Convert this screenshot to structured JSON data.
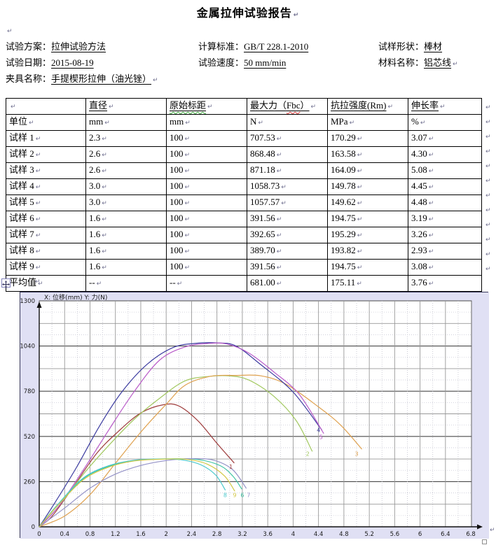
{
  "document_title": "金属拉伸试验报告",
  "marks": {
    "pilcrow": "↵"
  },
  "info": {
    "items": [
      {
        "label": "试验方案：",
        "value": "拉伸试验方法"
      },
      {
        "label": "计算标准：",
        "value": "GB/T 228.1-2010"
      },
      {
        "label": "试样形状：",
        "value": "棒材"
      },
      {
        "label": "试验日期：",
        "value": "2015-08-19"
      },
      {
        "label": "试验速度：",
        "value": "50 mm/min"
      },
      {
        "label": "材料名称：",
        "value": "铝芯线",
        "pilcrow": true
      },
      {
        "label": "夹具名称：",
        "value": "手提楔形拉伸（油光锉）",
        "pilcrow": true,
        "span": 3
      }
    ]
  },
  "table": {
    "unit_row_label": "单位",
    "columns": [
      {
        "title": "",
        "unit": ""
      },
      {
        "title": "直径",
        "unit": "mm"
      },
      {
        "title": "原始标距",
        "unit": "mm",
        "spellcheck": "green"
      },
      {
        "title_parts": [
          "最大力（",
          "Fbc",
          "）"
        ],
        "unit": "N",
        "spellcheck": "red"
      },
      {
        "title": "抗拉强度(Rm)",
        "unit": "MPa"
      },
      {
        "title": "伸长率",
        "unit": "%"
      }
    ],
    "rows": [
      {
        "name": "试样 1",
        "values": [
          "2.3",
          "100",
          "707.53",
          "170.29",
          "3.07"
        ]
      },
      {
        "name": "试样 2",
        "values": [
          "2.6",
          "100",
          "868.48",
          "163.58",
          "4.30"
        ]
      },
      {
        "name": "试样 3",
        "values": [
          "2.6",
          "100",
          "871.18",
          "164.09",
          "5.08"
        ]
      },
      {
        "name": "试样 4",
        "values": [
          "3.0",
          "100",
          "1058.73",
          "149.78",
          "4.45"
        ]
      },
      {
        "name": "试样 5",
        "values": [
          "3.0",
          "100",
          "1057.57",
          "149.62",
          "4.48"
        ]
      },
      {
        "name": "试样 6",
        "values": [
          "1.6",
          "100",
          "391.56",
          "194.75",
          "3.19"
        ]
      },
      {
        "name": "试样 7",
        "values": [
          "1.6",
          "100",
          "392.65",
          "195.29",
          "3.26"
        ]
      },
      {
        "name": "试样 8",
        "values": [
          "1.6",
          "100",
          "389.70",
          "193.82",
          "2.93"
        ]
      },
      {
        "name": "试样 9",
        "values": [
          "1.6",
          "100",
          "391.56",
          "194.75",
          "3.08"
        ]
      },
      {
        "name": "平均值",
        "values": [
          "--",
          "--",
          "681.00",
          "175.11",
          "3.76"
        ]
      }
    ]
  },
  "chart_data": {
    "type": "line",
    "title": "X: 位移(mm)  Y: 力(N)",
    "xlabel": "位移 (mm)",
    "ylabel": "力 (N)",
    "xlim": [
      0,
      6.8
    ],
    "ylim": [
      0,
      1300
    ],
    "x_ticks": [
      0,
      0.4,
      0.8,
      1.2,
      1.6,
      2,
      2.4,
      2.8,
      3.2,
      3.6,
      4,
      4.4,
      4.8,
      5.2,
      5.6,
      6,
      6.4,
      6.8
    ],
    "y_ticks": [
      0,
      260,
      520,
      780,
      1040,
      1300
    ],
    "grid": {
      "v_solid_step": 0.4,
      "v_dotted_step": 0.2,
      "h_dark_step": 260,
      "h_solid_step": 130,
      "h_dotted_step": 65
    },
    "legend_position": "curve-end-labels",
    "colors": {
      "plot_background": "#ffffff",
      "margin_background": "#e0e0f4"
    },
    "series": [
      {
        "name": "1",
        "color": "#9e3c3c",
        "label_xy": [
          3.02,
          335
        ],
        "points": [
          [
            0,
            0
          ],
          [
            0.2,
            60
          ],
          [
            0.5,
            210
          ],
          [
            0.9,
            420
          ],
          [
            1.25,
            550
          ],
          [
            1.6,
            655
          ],
          [
            1.95,
            702
          ],
          [
            2.2,
            695
          ],
          [
            2.5,
            610
          ],
          [
            2.8,
            480
          ],
          [
            3.07,
            368
          ]
        ]
      },
      {
        "name": "2",
        "color": "#a2c860",
        "label_xy": [
          4.23,
          408
        ],
        "points": [
          [
            0,
            0
          ],
          [
            0.3,
            115
          ],
          [
            0.7,
            305
          ],
          [
            1.1,
            470
          ],
          [
            1.5,
            620
          ],
          [
            1.9,
            740
          ],
          [
            2.3,
            840
          ],
          [
            2.7,
            866
          ],
          [
            3.0,
            868
          ],
          [
            3.3,
            845
          ],
          [
            3.7,
            750
          ],
          [
            4.05,
            610
          ],
          [
            4.3,
            435
          ]
        ]
      },
      {
        "name": "3",
        "color": "#dfa14f",
        "label_xy": [
          5.0,
          408
        ],
        "points": [
          [
            0,
            0
          ],
          [
            0.4,
            62
          ],
          [
            0.8,
            185
          ],
          [
            1.2,
            365
          ],
          [
            1.6,
            545
          ],
          [
            2.0,
            705
          ],
          [
            2.3,
            815
          ],
          [
            2.7,
            866
          ],
          [
            3.1,
            871
          ],
          [
            3.5,
            868
          ],
          [
            3.9,
            818
          ],
          [
            4.4,
            690
          ],
          [
            4.75,
            585
          ],
          [
            5.08,
            448
          ]
        ]
      },
      {
        "name": "4",
        "color": "#3c3ca0",
        "label_xy": [
          4.4,
          545
        ],
        "points": [
          [
            0,
            0
          ],
          [
            0.25,
            140
          ],
          [
            0.6,
            350
          ],
          [
            0.95,
            580
          ],
          [
            1.3,
            775
          ],
          [
            1.7,
            935
          ],
          [
            2.1,
            1030
          ],
          [
            2.45,
            1055
          ],
          [
            2.8,
            1058
          ],
          [
            3.1,
            1040
          ],
          [
            3.5,
            930
          ],
          [
            4.0,
            775
          ],
          [
            4.45,
            558
          ]
        ]
      },
      {
        "name": "5",
        "color": "#b85ac8",
        "label_xy": [
          4.44,
          505
        ],
        "points": [
          [
            0,
            0
          ],
          [
            0.3,
            115
          ],
          [
            0.7,
            330
          ],
          [
            1.1,
            560
          ],
          [
            1.5,
            780
          ],
          [
            1.9,
            960
          ],
          [
            2.3,
            1035
          ],
          [
            2.65,
            1054
          ],
          [
            2.95,
            1052
          ],
          [
            3.3,
            1000
          ],
          [
            3.7,
            890
          ],
          [
            4.1,
            760
          ],
          [
            4.48,
            538
          ]
        ]
      },
      {
        "name": "6",
        "color": "#3fc4a4",
        "label_xy": [
          3.2,
          172
        ],
        "points": [
          [
            0,
            0
          ],
          [
            0.3,
            128
          ],
          [
            0.7,
            278
          ],
          [
            1.1,
            348
          ],
          [
            1.5,
            381
          ],
          [
            2.0,
            391
          ],
          [
            2.5,
            387
          ],
          [
            2.85,
            352
          ],
          [
            3.05,
            292
          ],
          [
            3.19,
            218
          ]
        ]
      },
      {
        "name": "7",
        "color": "#9593c8",
        "label_xy": [
          3.3,
          172
        ],
        "points": [
          [
            0,
            0
          ],
          [
            0.4,
            108
          ],
          [
            0.8,
            222
          ],
          [
            1.2,
            303
          ],
          [
            1.6,
            353
          ],
          [
            2.0,
            381
          ],
          [
            2.4,
            392
          ],
          [
            2.75,
            383
          ],
          [
            3.05,
            328
          ],
          [
            3.26,
            222
          ]
        ]
      },
      {
        "name": "8",
        "color": "#49c8cc",
        "label_xy": [
          2.93,
          172
        ],
        "points": [
          [
            0,
            0
          ],
          [
            0.3,
            132
          ],
          [
            0.7,
            282
          ],
          [
            1.1,
            352
          ],
          [
            1.5,
            383
          ],
          [
            1.9,
            390
          ],
          [
            2.25,
            385
          ],
          [
            2.55,
            356
          ],
          [
            2.78,
            298
          ],
          [
            2.93,
            212
          ]
        ]
      },
      {
        "name": "9",
        "color": "#d2c845",
        "label_xy": [
          3.08,
          172
        ],
        "points": [
          [
            0,
            0
          ],
          [
            0.3,
            126
          ],
          [
            0.7,
            272
          ],
          [
            1.1,
            344
          ],
          [
            1.5,
            379
          ],
          [
            2.0,
            390
          ],
          [
            2.35,
            387
          ],
          [
            2.65,
            360
          ],
          [
            2.92,
            292
          ],
          [
            3.08,
            206
          ]
        ]
      }
    ]
  }
}
